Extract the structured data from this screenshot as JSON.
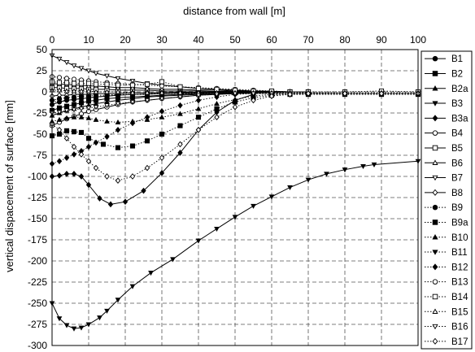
{
  "chart_data": {
    "type": "line",
    "title": "",
    "xlabel": "distance from wall [m]",
    "ylabel": "vertical dispacement of surface [mm]",
    "xlim": [
      0,
      100
    ],
    "ylim": [
      -300,
      50
    ],
    "x_ticks": [
      0,
      10,
      20,
      30,
      40,
      50,
      60,
      70,
      80,
      90,
      100
    ],
    "y_ticks": [
      50,
      25,
      0,
      -25,
      -50,
      -75,
      -100,
      -125,
      -150,
      -175,
      -200,
      -225,
      -250,
      -275,
      -300
    ],
    "x_axis_position": "top",
    "grid": true,
    "legend_position": "right",
    "series": [
      {
        "name": "B1",
        "marker": "circle-filled",
        "dash": "solid",
        "x": [
          0,
          2,
          4,
          6,
          8,
          10,
          12,
          15,
          18,
          22,
          26,
          30,
          35,
          40,
          45,
          50,
          55,
          60,
          65,
          70
        ],
        "y": [
          -15,
          -12,
          -10,
          -9,
          -8,
          -7,
          -6,
          -5,
          -4,
          -3,
          -2.5,
          -2,
          -1.5,
          -1,
          -0.5,
          -0.3,
          -0.2,
          -0.1,
          0,
          0
        ]
      },
      {
        "name": "B2",
        "marker": "square-filled",
        "dash": "solid",
        "x": [
          0,
          2,
          4,
          6,
          8,
          10,
          12,
          15,
          18,
          22,
          26,
          30,
          35,
          40,
          45,
          50,
          55,
          60,
          65,
          70
        ],
        "y": [
          -22,
          -19,
          -17,
          -15,
          -13,
          -11,
          -10,
          -8,
          -7,
          -6,
          -5,
          -4,
          -3,
          -2,
          -1.5,
          -1,
          -0.5,
          -0.3,
          0,
          0
        ]
      },
      {
        "name": "B2a",
        "marker": "triangle-filled",
        "dash": "solid",
        "x": [
          0,
          2,
          4,
          6,
          8,
          10,
          12,
          15,
          18,
          22,
          26,
          30,
          35,
          40,
          45,
          50,
          55,
          60,
          65,
          70
        ],
        "y": [
          -28,
          -25,
          -22,
          -20,
          -18,
          -16,
          -14,
          -12,
          -10,
          -8,
          -6,
          -5,
          -4,
          -3,
          -2,
          -1.5,
          -1,
          -0.5,
          0,
          0
        ]
      },
      {
        "name": "B3",
        "marker": "triangle-down-filled",
        "dash": "solid",
        "x": [
          0,
          2,
          4,
          6,
          8,
          10,
          13,
          15,
          18,
          22,
          27,
          33,
          40,
          45,
          50,
          55,
          60,
          65,
          70,
          75,
          80,
          85,
          88,
          100
        ],
        "y": [
          -250,
          -268,
          -276,
          -280,
          -279,
          -275,
          -267,
          -259,
          -246,
          -230,
          -214,
          -198,
          -176,
          -162,
          -148,
          -135,
          -124,
          -113,
          -104,
          -97,
          -92,
          -88,
          -86,
          -82
        ]
      },
      {
        "name": "B3a",
        "marker": "diamond-filled",
        "dash": "solid",
        "x": [
          0,
          2,
          4,
          6,
          8,
          10,
          13,
          16,
          20,
          25,
          30,
          35,
          40,
          45,
          50,
          55
        ],
        "y": [
          -100,
          -99,
          -97,
          -97,
          -100,
          -110,
          -126,
          -133,
          -130,
          -117,
          -96,
          -72,
          -45,
          -24,
          -10,
          -3
        ]
      },
      {
        "name": "B4",
        "marker": "circle-open",
        "dash": "solid",
        "x": [
          0,
          2,
          4,
          6,
          8,
          10,
          12,
          15,
          18,
          22,
          26,
          30,
          35,
          40,
          45,
          50,
          55,
          60,
          65,
          70
        ],
        "y": [
          -40,
          -36,
          -32,
          -29,
          -26,
          -23,
          -21,
          -18,
          -15,
          -12,
          -10,
          -8,
          -6,
          -4,
          -3,
          -2,
          -1,
          -0.5,
          0,
          0
        ]
      },
      {
        "name": "B5",
        "marker": "square-open",
        "dash": "solid",
        "x": [
          0,
          2,
          4,
          6,
          8,
          10,
          12,
          15,
          18,
          22,
          26,
          30,
          35,
          40,
          45,
          50,
          55,
          60,
          65,
          70
        ],
        "y": [
          5,
          5,
          4,
          4,
          4,
          3,
          3,
          3,
          2,
          2,
          2,
          1,
          1,
          1,
          0.5,
          0.5,
          0,
          0,
          0,
          0
        ]
      },
      {
        "name": "B6",
        "marker": "triangle-open",
        "dash": "solid",
        "x": [
          0,
          2,
          4,
          6,
          8,
          10,
          12,
          15,
          18,
          22,
          26,
          30,
          35,
          40,
          45,
          50,
          55,
          60,
          65,
          70
        ],
        "y": [
          10,
          9,
          9,
          8,
          8,
          7,
          7,
          6,
          5,
          5,
          4,
          3,
          3,
          2,
          2,
          1,
          1,
          0.5,
          0,
          0
        ]
      },
      {
        "name": "B7",
        "marker": "triangle-down-open",
        "dash": "solid",
        "x": [
          0,
          2,
          4,
          6,
          8,
          10,
          12,
          15,
          18,
          22,
          26,
          30,
          35,
          40,
          45,
          50,
          55,
          60,
          65,
          70
        ],
        "y": [
          43,
          39,
          35,
          31,
          28,
          25,
          22,
          19,
          16,
          13,
          10,
          8,
          6,
          4,
          3,
          2,
          1,
          0.5,
          0,
          0
        ]
      },
      {
        "name": "B8",
        "marker": "diamond-open",
        "dash": "solid",
        "x": [
          0,
          2,
          4,
          6,
          8,
          10,
          12,
          15,
          18,
          22,
          26,
          30,
          35,
          40,
          45,
          50,
          55,
          60,
          65,
          70
        ],
        "y": [
          -5,
          -4,
          -4,
          -3,
          -3,
          -3,
          -2,
          -2,
          -2,
          -1,
          -1,
          -1,
          -0.5,
          -0.5,
          0,
          0,
          0,
          0,
          0,
          0
        ]
      },
      {
        "name": "B9",
        "marker": "circle-filled",
        "dash": "dotted",
        "x": [
          0,
          2,
          4,
          6,
          8,
          10,
          12,
          15,
          18,
          22,
          26,
          30,
          35,
          40,
          45,
          50,
          55,
          60,
          65,
          70,
          80,
          90,
          100
        ],
        "y": [
          -10,
          -8,
          -7,
          -6,
          -5,
          -5,
          -4,
          -4,
          -3,
          -3,
          -2,
          -2,
          -2,
          -2,
          -2,
          -2,
          -2,
          -2,
          -2,
          -2,
          -2,
          -2,
          -2
        ]
      },
      {
        "name": "B9a",
        "marker": "square-filled",
        "dash": "dotted",
        "x": [
          0,
          2,
          4,
          6,
          8,
          10,
          14,
          18,
          22,
          26,
          30,
          35,
          40,
          45,
          50,
          55,
          60,
          65,
          70,
          80,
          90,
          100
        ],
        "y": [
          -52,
          -50,
          -46,
          -47,
          -48,
          -55,
          -62,
          -66,
          -64,
          -58,
          -50,
          -40,
          -30,
          -20,
          -12,
          -7,
          -4,
          -3,
          -3,
          -3,
          -3,
          -3
        ]
      },
      {
        "name": "B10",
        "marker": "triangle-filled",
        "dash": "dotted",
        "x": [
          0,
          2,
          4,
          6,
          8,
          10,
          12,
          15,
          18,
          22,
          26,
          30,
          35,
          40,
          45,
          50,
          55,
          60,
          65,
          70,
          80,
          90,
          100
        ],
        "y": [
          -35,
          -33,
          -31,
          -30,
          -30,
          -31,
          -33,
          -35,
          -36,
          -35,
          -33,
          -30,
          -26,
          -20,
          -14,
          -9,
          -5,
          -3,
          -2,
          -2,
          -2,
          -2,
          -2
        ]
      },
      {
        "name": "B11",
        "marker": "triangle-down-filled",
        "dash": "dotted",
        "x": [
          0,
          2,
          4,
          6,
          8,
          10,
          12,
          15,
          18,
          22,
          26,
          30,
          35,
          40,
          45,
          50,
          55,
          60,
          65,
          70,
          80,
          90,
          100
        ],
        "y": [
          -12,
          -11,
          -10,
          -9,
          -8,
          -7,
          -6,
          -5,
          -4,
          -3,
          -3,
          -2,
          -2,
          -2,
          -2,
          -2,
          -2,
          -2,
          -2,
          -2,
          -2,
          -2,
          -2
        ]
      },
      {
        "name": "B12",
        "marker": "diamond-filled",
        "dash": "dotted",
        "x": [
          0,
          2,
          4,
          6,
          8,
          10,
          12,
          15,
          18,
          22,
          26,
          30,
          35,
          40,
          45,
          50,
          55,
          60,
          65,
          70,
          80,
          90,
          100
        ],
        "y": [
          -85,
          -82,
          -78,
          -74,
          -70,
          -65,
          -60,
          -53,
          -45,
          -37,
          -30,
          -23,
          -16,
          -10,
          -6,
          -3,
          -2,
          -2,
          -2,
          -2,
          -2,
          -2,
          -2
        ]
      },
      {
        "name": "B13",
        "marker": "circle-open",
        "dash": "dotted",
        "x": [
          0,
          2,
          4,
          6,
          8,
          10,
          12,
          15,
          18,
          22,
          26,
          30,
          35,
          40,
          45,
          50,
          55,
          60,
          65,
          70,
          80,
          90,
          100
        ],
        "y": [
          18,
          17,
          16,
          15,
          14,
          13,
          12,
          11,
          10,
          9,
          8,
          7,
          6,
          5,
          4,
          3,
          2,
          1,
          0,
          -1,
          -2,
          -2,
          -2
        ]
      },
      {
        "name": "B14",
        "marker": "square-open",
        "dash": "dotted",
        "x": [
          0,
          2,
          4,
          6,
          8,
          10,
          12,
          15,
          18,
          22,
          26,
          30,
          35,
          40,
          45,
          50,
          55,
          60,
          65,
          70,
          80,
          90,
          100
        ],
        "y": [
          12,
          11,
          11,
          10,
          10,
          10,
          9,
          9,
          8,
          8,
          9,
          12,
          6,
          4,
          3,
          2,
          1,
          1,
          0,
          0,
          0,
          1,
          0
        ]
      },
      {
        "name": "B15",
        "marker": "triangle-open",
        "dash": "dotted",
        "x": [
          0,
          2,
          4,
          6,
          8,
          10,
          12,
          15,
          18,
          22,
          26,
          30,
          35,
          40,
          45,
          50,
          55,
          60,
          65,
          70,
          80,
          90,
          100
        ],
        "y": [
          2,
          2,
          1,
          1,
          1,
          1,
          0,
          0,
          0,
          -1,
          -1,
          -1,
          -1,
          -1,
          -1,
          -1,
          -1,
          -1,
          -1,
          -1,
          -1,
          -1,
          -1
        ]
      },
      {
        "name": "B16",
        "marker": "triangle-down-open",
        "dash": "dotted",
        "x": [
          0,
          2,
          4,
          6,
          8,
          10,
          12,
          15,
          18,
          22,
          26,
          30,
          35,
          40,
          45,
          50,
          55,
          60,
          65,
          70,
          80,
          90,
          100
        ],
        "y": [
          -25,
          -24,
          -22,
          -21,
          -20,
          -19,
          -18,
          -16,
          -14,
          -12,
          -10,
          -8,
          -6,
          -4,
          -3,
          -2,
          -2,
          -2,
          -2,
          -2,
          -2,
          -2,
          -2
        ]
      },
      {
        "name": "B17",
        "marker": "diamond-open",
        "dash": "dotted",
        "x": [
          0,
          2,
          4,
          6,
          8,
          10,
          12,
          15,
          18,
          22,
          26,
          30,
          35,
          40,
          45,
          50,
          55,
          60,
          65,
          70,
          80,
          90,
          100
        ],
        "y": [
          -38,
          -45,
          -55,
          -65,
          -74,
          -82,
          -90,
          -100,
          -105,
          -100,
          -90,
          -78,
          -62,
          -45,
          -30,
          -18,
          -10,
          -5,
          -3,
          -2,
          -2,
          -2,
          -2
        ]
      }
    ]
  }
}
